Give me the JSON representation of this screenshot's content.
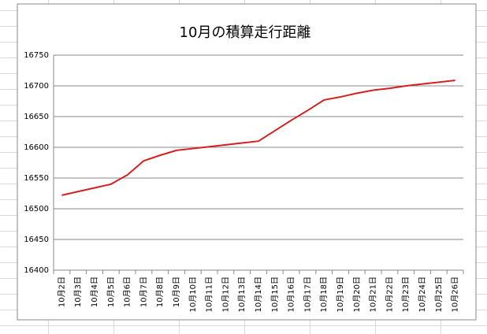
{
  "chart_data": {
    "type": "line",
    "title": "10月の積算走行距離",
    "categories": [
      "10月2日",
      "10月3日",
      "10月4日",
      "10月5日",
      "10月6日",
      "10月7日",
      "10月8日",
      "10月9日",
      "10月10日",
      "10月11日",
      "10月12日",
      "10月13日",
      "10月14日",
      "10月15日",
      "10月16日",
      "10月17日",
      "10月18日",
      "10月19日",
      "10月20日",
      "10月21日",
      "10月22日",
      "10月23日",
      "10月24日",
      "10月25日",
      "10月26日"
    ],
    "values": [
      16522,
      16528,
      16534,
      16540,
      16555,
      16578,
      16587,
      16595,
      16598,
      16601,
      16604,
      16607,
      16610,
      16627,
      16644,
      16660,
      16677,
      16682,
      16688,
      16693,
      16696,
      16700,
      16703,
      16706,
      16709
    ],
    "color": "#d42020",
    "ylim": [
      16400,
      16750
    ],
    "yticks": [
      16400,
      16450,
      16500,
      16550,
      16600,
      16650,
      16700,
      16750
    ],
    "grid": true
  }
}
